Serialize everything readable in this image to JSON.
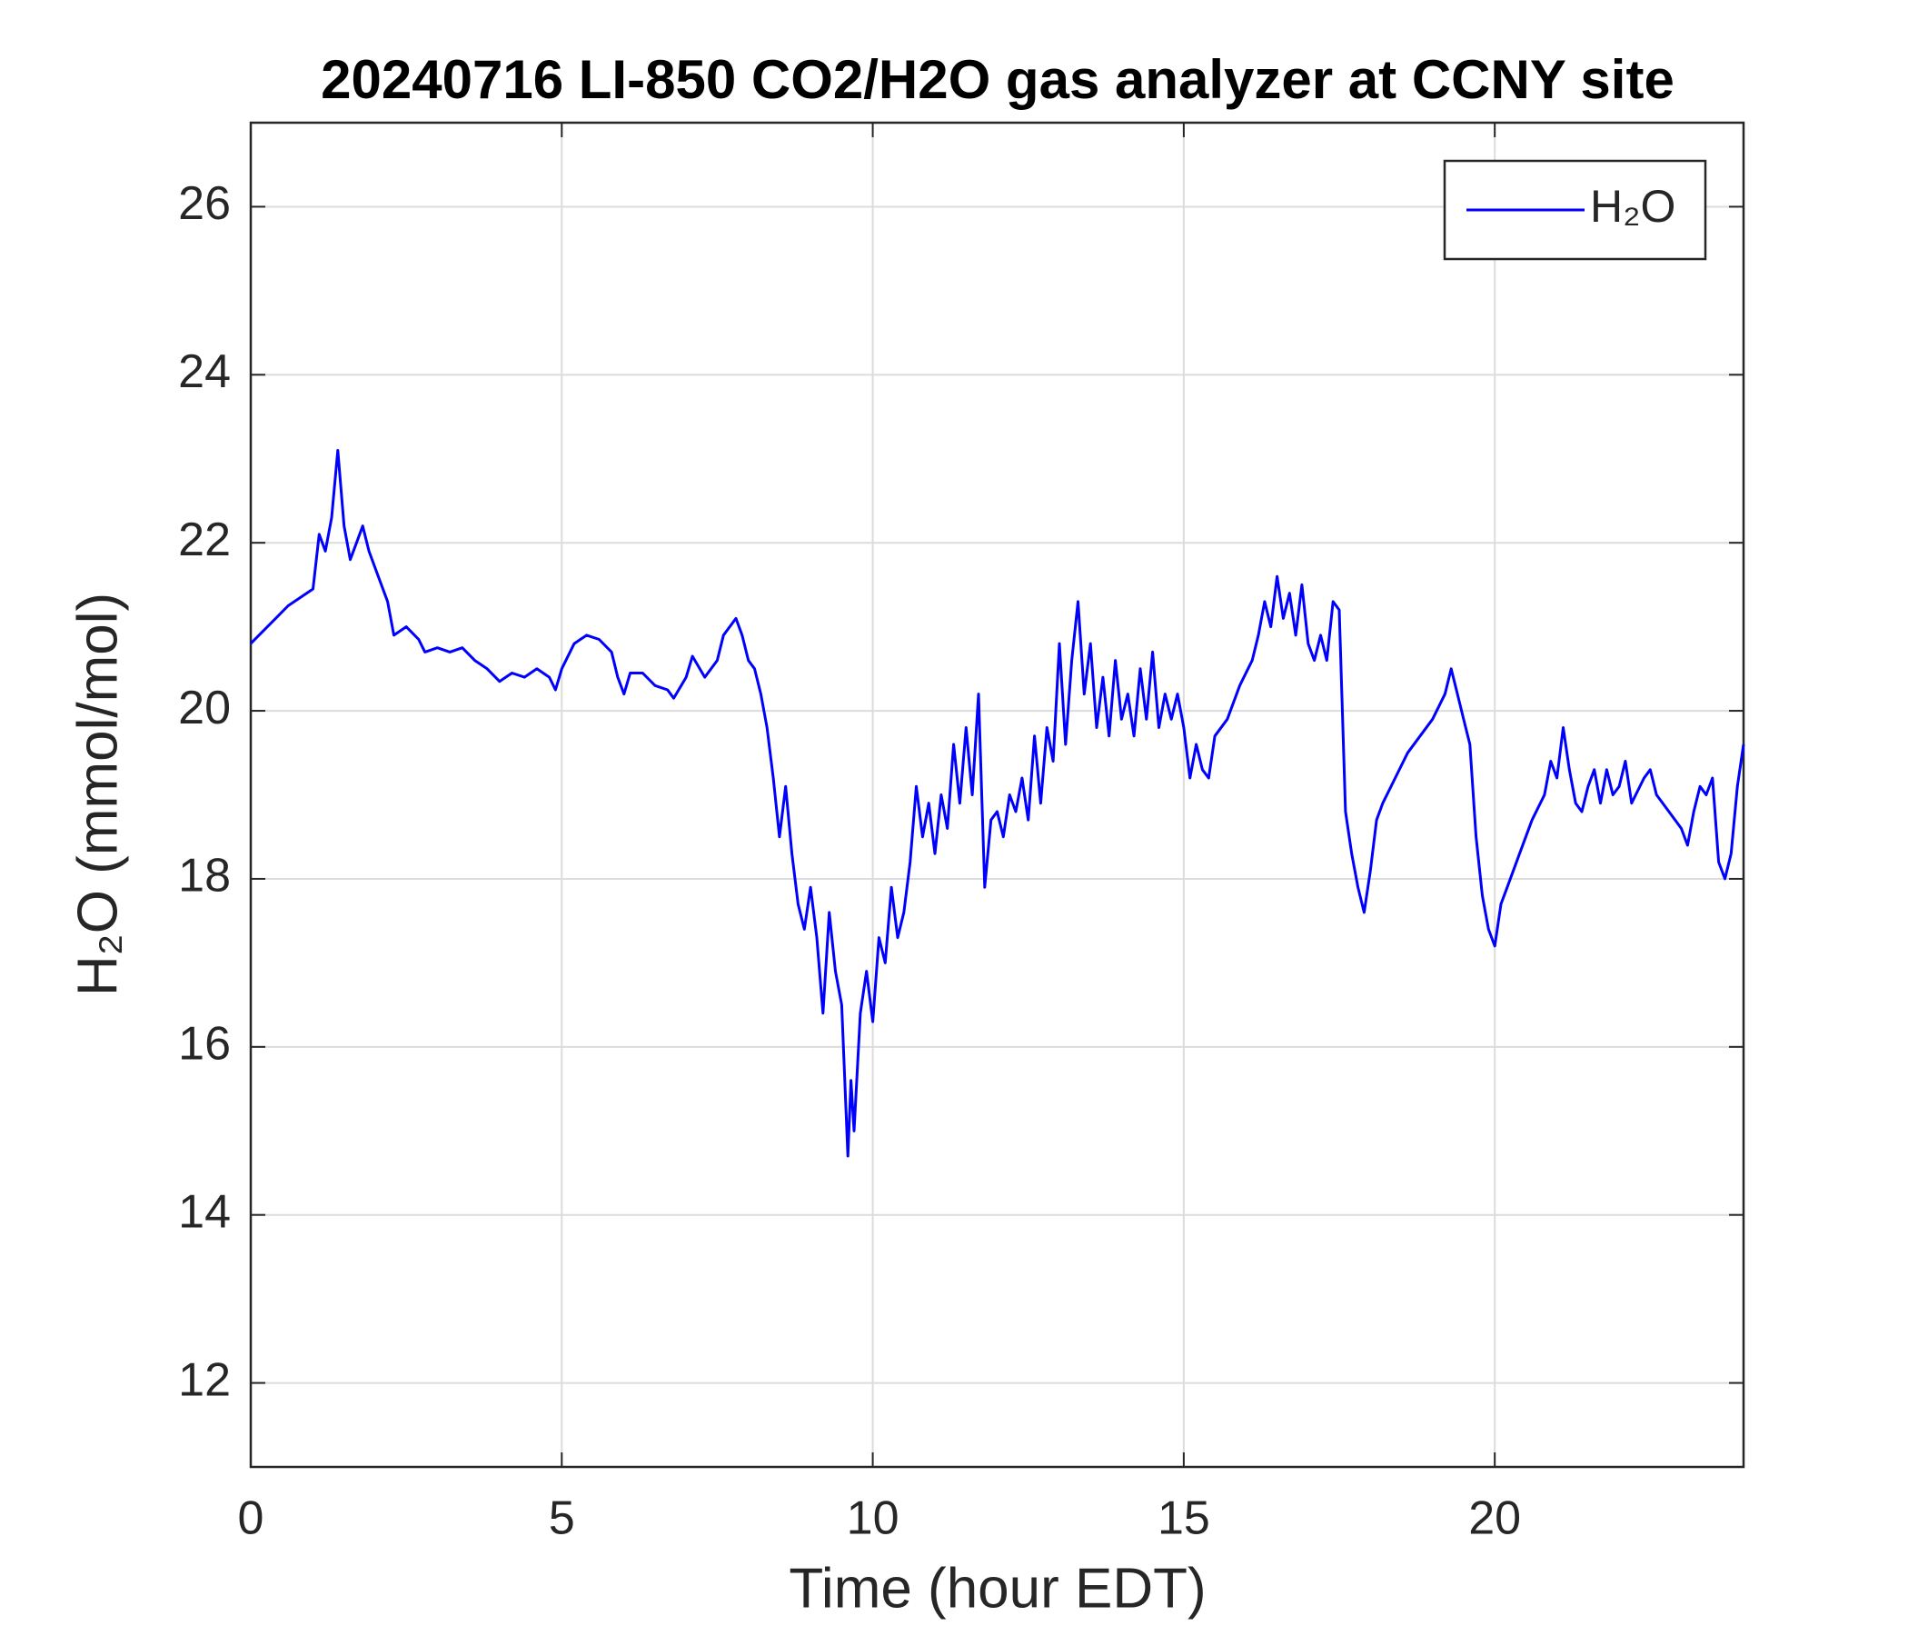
{
  "chart_data": {
    "type": "line",
    "title": "20240716 LI-850 CO2/H2O gas analyzer at CCNY site",
    "x_label": "Time (hour EDT)",
    "y_label": "H₂O (mmol/mol)",
    "xlim": [
      0,
      24
    ],
    "xticks": [
      0,
      5,
      10,
      15,
      20
    ],
    "ylim": [
      11,
      27
    ],
    "yticks": [
      12,
      14,
      16,
      18,
      20,
      22,
      24,
      26
    ],
    "grid": true,
    "legend": "northeast",
    "x": [
      0,
      0.2,
      0.4,
      0.6,
      0.8,
      1.0,
      1.1,
      1.2,
      1.3,
      1.4,
      1.5,
      1.6,
      1.7,
      1.8,
      1.9,
      2.0,
      2.2,
      2.3,
      2.5,
      2.7,
      2.8,
      3.0,
      3.2,
      3.4,
      3.6,
      3.8,
      4.0,
      4.2,
      4.4,
      4.6,
      4.8,
      4.9,
      5.0,
      5.2,
      5.4,
      5.6,
      5.8,
      5.9,
      6.0,
      6.1,
      6.3,
      6.5,
      6.7,
      6.8,
      7.0,
      7.1,
      7.3,
      7.5,
      7.6,
      7.8,
      7.9,
      8.0,
      8.1,
      8.2,
      8.3,
      8.4,
      8.5,
      8.6,
      8.7,
      8.8,
      8.9,
      9.0,
      9.1,
      9.2,
      9.3,
      9.4,
      9.5,
      9.6,
      9.65,
      9.7,
      9.8,
      9.9,
      10.0,
      10.1,
      10.2,
      10.3,
      10.4,
      10.5,
      10.6,
      10.7,
      10.8,
      10.9,
      11.0,
      11.1,
      11.2,
      11.3,
      11.4,
      11.5,
      11.6,
      11.7,
      11.8,
      11.9,
      12.0,
      12.1,
      12.2,
      12.3,
      12.4,
      12.5,
      12.6,
      12.7,
      12.8,
      12.9,
      13.0,
      13.1,
      13.2,
      13.3,
      13.4,
      13.5,
      13.6,
      13.7,
      13.8,
      13.9,
      14.0,
      14.1,
      14.2,
      14.3,
      14.4,
      14.5,
      14.6,
      14.7,
      14.8,
      14.9,
      15.0,
      15.1,
      15.2,
      15.3,
      15.4,
      15.5,
      15.7,
      15.9,
      16.1,
      16.2,
      16.3,
      16.4,
      16.5,
      16.6,
      16.7,
      16.8,
      16.9,
      17.0,
      17.1,
      17.2,
      17.3,
      17.4,
      17.5,
      17.6,
      17.7,
      17.8,
      17.9,
      18.0,
      18.1,
      18.2,
      18.4,
      18.6,
      18.8,
      19.0,
      19.2,
      19.3,
      19.4,
      19.5,
      19.6,
      19.7,
      19.8,
      19.9,
      20.0,
      20.1,
      20.2,
      20.4,
      20.6,
      20.8,
      20.9,
      21.0,
      21.1,
      21.2,
      21.3,
      21.4,
      21.5,
      21.6,
      21.7,
      21.8,
      21.9,
      22.0,
      22.1,
      22.2,
      22.4,
      22.5,
      22.6,
      22.8,
      23.0,
      23.1,
      23.2,
      23.3,
      23.4,
      23.5,
      23.6,
      23.7,
      23.8,
      23.9,
      24.0
    ],
    "series": [
      {
        "name": "H₂O",
        "color": "#0000ff",
        "values": [
          20.8,
          20.95,
          21.1,
          21.25,
          21.35,
          21.45,
          22.1,
          21.9,
          22.3,
          23.1,
          22.2,
          21.8,
          22.0,
          22.2,
          21.9,
          21.7,
          21.3,
          20.9,
          21.0,
          20.85,
          20.7,
          20.75,
          20.7,
          20.75,
          20.6,
          20.5,
          20.35,
          20.45,
          20.4,
          20.5,
          20.4,
          20.25,
          20.5,
          20.8,
          20.9,
          20.85,
          20.7,
          20.4,
          20.2,
          20.45,
          20.45,
          20.3,
          20.25,
          20.15,
          20.4,
          20.65,
          20.4,
          20.6,
          20.9,
          21.1,
          20.9,
          20.6,
          20.5,
          20.2,
          19.8,
          19.2,
          18.5,
          19.1,
          18.3,
          17.7,
          17.4,
          17.9,
          17.3,
          16.4,
          17.6,
          16.9,
          16.5,
          14.7,
          15.6,
          15.0,
          16.4,
          16.9,
          16.3,
          17.3,
          17.0,
          17.9,
          17.3,
          17.6,
          18.2,
          19.1,
          18.5,
          18.9,
          18.3,
          19.0,
          18.6,
          19.6,
          18.9,
          19.8,
          19.0,
          20.2,
          17.9,
          18.7,
          18.8,
          18.5,
          19.0,
          18.8,
          19.2,
          18.7,
          19.7,
          18.9,
          19.8,
          19.4,
          20.8,
          19.6,
          20.6,
          21.3,
          20.2,
          20.8,
          19.8,
          20.4,
          19.7,
          20.6,
          19.9,
          20.2,
          19.7,
          20.5,
          19.9,
          20.7,
          19.8,
          20.2,
          19.9,
          20.2,
          19.8,
          19.2,
          19.6,
          19.3,
          19.2,
          19.7,
          19.9,
          20.3,
          20.6,
          20.9,
          21.3,
          21.0,
          21.6,
          21.1,
          21.4,
          20.9,
          21.5,
          20.8,
          20.6,
          20.9,
          20.6,
          21.3,
          21.2,
          18.8,
          18.3,
          17.9,
          17.6,
          18.1,
          18.7,
          18.9,
          19.2,
          19.5,
          19.7,
          19.9,
          20.2,
          20.5,
          20.2,
          19.9,
          19.6,
          18.5,
          17.8,
          17.4,
          17.2,
          17.7,
          17.9,
          18.3,
          18.7,
          19.0,
          19.4,
          19.2,
          19.8,
          19.3,
          18.9,
          18.8,
          19.1,
          19.3,
          18.9,
          19.3,
          19.0,
          19.1,
          19.4,
          18.9,
          19.2,
          19.3,
          19.0,
          18.8,
          18.6,
          18.4,
          18.8,
          19.1,
          19.0,
          19.2,
          18.2,
          18.0,
          18.3,
          19.1,
          19.6
        ]
      }
    ]
  }
}
